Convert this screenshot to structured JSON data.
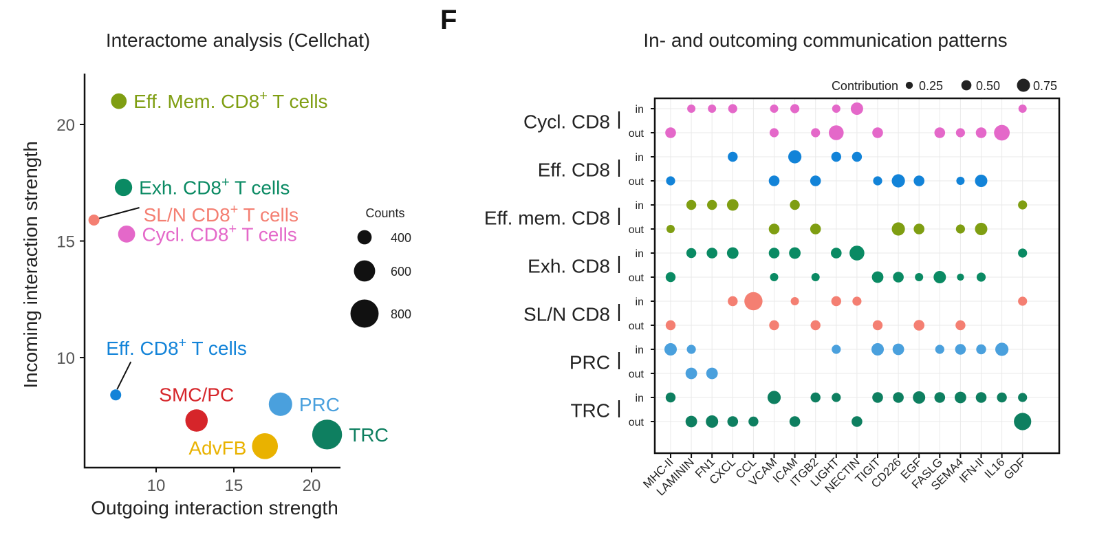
{
  "panel_label": "F",
  "colors": {
    "eff_mem": "#7f9e12",
    "exh": "#0a8a63",
    "sl_n": "#f47f72",
    "cycl": "#e468c9",
    "eff": "#1283d8",
    "smc_pc": "#d6252a",
    "prc": "#4aa0dd",
    "trc": "#0e7f60",
    "advfb": "#e9b200"
  },
  "chart_data": [
    {
      "type": "scatter",
      "title": "Interactome analysis (Cellchat)",
      "xlabel": "Outgoing interaction strength",
      "ylabel": "Incoming interaction strength",
      "xlim": [
        5.5,
        22
      ],
      "ylim": [
        5,
        22
      ],
      "xticks": [
        10,
        15,
        20
      ],
      "yticks": [
        10,
        15,
        20
      ],
      "grid": false,
      "legend": {
        "title": "Counts",
        "placement": "right",
        "entries": [
          {
            "label": "400",
            "value": 400
          },
          {
            "label": "600",
            "value": 600
          },
          {
            "label": "800",
            "value": 800
          }
        ]
      },
      "points": [
        {
          "label_main": "Eff. Mem. CD8",
          "label_sup": "+",
          "label_rest": " T cells",
          "x": 7.6,
          "y": 21.0,
          "count": 430,
          "color": "#7f9e12",
          "label_side": "right"
        },
        {
          "label_main": "Exh. CD8",
          "label_sup": "+",
          "label_rest": " T cells",
          "x": 7.9,
          "y": 17.3,
          "count": 480,
          "color": "#0a8a63",
          "label_side": "right"
        },
        {
          "label_main": "SL/N CD8",
          "label_sup": "+",
          "label_rest": " T cells",
          "x": 6.0,
          "y": 15.9,
          "count": 300,
          "color": "#f47f72",
          "label_side": "leader-right"
        },
        {
          "label_main": "Cycl. CD8",
          "label_sup": "+",
          "label_rest": " T cells",
          "x": 8.1,
          "y": 15.3,
          "count": 470,
          "color": "#e468c9",
          "label_side": "right"
        },
        {
          "label_main": "Eff. CD8",
          "label_sup": "+",
          "label_rest": " T cells",
          "x": 7.4,
          "y": 8.4,
          "count": 300,
          "color": "#1283d8",
          "label_side": "leader-up"
        },
        {
          "label_main": "SMC/PC",
          "label_sup": "",
          "label_rest": "",
          "x": 12.6,
          "y": 7.3,
          "count": 620,
          "color": "#d6252a",
          "label_side": "above"
        },
        {
          "label_main": "PRC",
          "label_sup": "",
          "label_rest": "",
          "x": 18.0,
          "y": 8.0,
          "count": 650,
          "color": "#4aa0dd",
          "label_side": "right"
        },
        {
          "label_main": "TRC",
          "label_sup": "",
          "label_rest": "",
          "x": 21.0,
          "y": 6.7,
          "count": 830,
          "color": "#0e7f60",
          "label_side": "right"
        },
        {
          "label_main": "AdvFB",
          "label_sup": "",
          "label_rest": "",
          "x": 17.0,
          "y": 6.2,
          "count": 720,
          "color": "#e9b200",
          "label_side": "left"
        }
      ]
    },
    {
      "type": "scatter",
      "subtype": "dot-matrix",
      "title": "In- and outcoming communication patterns",
      "xlabel": "",
      "ylabel": "",
      "grid": true,
      "categories": [
        "MHC-II",
        "LAMININ",
        "FN1",
        "CXCL",
        "CCL",
        "VCAM",
        "ICAM",
        "ITGB2",
        "LIGHT",
        "NECTIN",
        "TIGIT",
        "CD226",
        "EGF",
        "FASLG",
        "SEMA4",
        "IFN-II",
        "IL16",
        "GDF"
      ],
      "groups": [
        {
          "name": "Cycl. CD8",
          "color": "#e468c9"
        },
        {
          "name": "Eff. CD8",
          "color": "#1283d8"
        },
        {
          "name": "Eff. mem. CD8",
          "color": "#7f9e12"
        },
        {
          "name": "Exh. CD8",
          "color": "#0a8a63"
        },
        {
          "name": "SL/N CD8",
          "color": "#f47f72"
        },
        {
          "name": "PRC",
          "color": "#4aa0dd"
        },
        {
          "name": "TRC",
          "color": "#0e7f60"
        }
      ],
      "direction_labels": [
        "in",
        "out"
      ],
      "legend": {
        "title": "Contribution",
        "placement": "top-right",
        "entries": [
          {
            "label": "0.25",
            "value": 0.25
          },
          {
            "label": "0.50",
            "value": 0.5
          },
          {
            "label": "0.75",
            "value": 0.75
          }
        ]
      },
      "rows": [
        {
          "group": 0,
          "dir": "in",
          "values": [
            null,
            0.15,
            0.15,
            0.2,
            null,
            0.15,
            0.2,
            null,
            0.15,
            0.4,
            null,
            null,
            null,
            null,
            null,
            null,
            null,
            0.15
          ]
        },
        {
          "group": 0,
          "dir": "out",
          "values": [
            0.3,
            null,
            null,
            null,
            null,
            0.2,
            null,
            0.2,
            0.55,
            null,
            0.3,
            null,
            null,
            0.3,
            0.2,
            0.3,
            0.6,
            null
          ]
        },
        {
          "group": 1,
          "dir": "in",
          "values": [
            null,
            null,
            null,
            0.25,
            null,
            null,
            0.45,
            null,
            0.25,
            0.25,
            null,
            null,
            null,
            null,
            null,
            null,
            null,
            null
          ]
        },
        {
          "group": 1,
          "dir": "out",
          "values": [
            0.2,
            null,
            null,
            null,
            null,
            0.3,
            null,
            0.3,
            null,
            null,
            0.2,
            0.45,
            0.3,
            null,
            0.15,
            0.4,
            null,
            null
          ]
        },
        {
          "group": 2,
          "dir": "in",
          "values": [
            null,
            0.25,
            0.25,
            0.35,
            null,
            null,
            0.25,
            null,
            null,
            null,
            null,
            null,
            null,
            null,
            null,
            null,
            null,
            0.2
          ]
        },
        {
          "group": 2,
          "dir": "out",
          "values": [
            0.15,
            null,
            null,
            null,
            null,
            0.3,
            null,
            0.3,
            null,
            null,
            null,
            0.45,
            0.3,
            null,
            0.2,
            0.4,
            null,
            null
          ]
        },
        {
          "group": 3,
          "dir": "in",
          "values": [
            null,
            0.25,
            0.3,
            0.35,
            null,
            0.3,
            0.35,
            null,
            0.3,
            0.55,
            null,
            null,
            null,
            null,
            null,
            null,
            null,
            0.2
          ]
        },
        {
          "group": 3,
          "dir": "out",
          "values": [
            0.25,
            null,
            null,
            null,
            null,
            0.15,
            null,
            0.15,
            null,
            null,
            0.35,
            0.3,
            0.15,
            0.4,
            0.08,
            0.2,
            null,
            null
          ]
        },
        {
          "group": 4,
          "dir": "in",
          "values": [
            null,
            null,
            null,
            0.25,
            0.75,
            null,
            0.15,
            null,
            0.25,
            0.2,
            null,
            null,
            null,
            null,
            null,
            null,
            null,
            0.2
          ]
        },
        {
          "group": 4,
          "dir": "out",
          "values": [
            0.25,
            null,
            null,
            null,
            null,
            0.25,
            null,
            0.25,
            null,
            null,
            0.25,
            null,
            0.3,
            null,
            0.25,
            null,
            null,
            null
          ]
        },
        {
          "group": 5,
          "dir": "in",
          "values": [
            0.4,
            0.2,
            null,
            null,
            null,
            null,
            null,
            null,
            0.2,
            null,
            0.4,
            0.35,
            null,
            0.2,
            0.3,
            0.25,
            0.45,
            null
          ]
        },
        {
          "group": 5,
          "dir": "out",
          "values": [
            null,
            0.35,
            0.35,
            null,
            null,
            null,
            null,
            null,
            null,
            null,
            null,
            null,
            null,
            null,
            null,
            null,
            null,
            null
          ]
        },
        {
          "group": 6,
          "dir": "in",
          "values": [
            0.25,
            null,
            null,
            null,
            null,
            0.45,
            null,
            0.25,
            0.2,
            null,
            0.3,
            0.3,
            0.4,
            0.3,
            0.35,
            0.3,
            0.25,
            0.2
          ]
        },
        {
          "group": 6,
          "dir": "out",
          "values": [
            null,
            0.35,
            0.4,
            0.3,
            0.25,
            null,
            0.3,
            null,
            null,
            0.3,
            null,
            null,
            null,
            null,
            null,
            null,
            null,
            0.7
          ]
        }
      ]
    }
  ]
}
